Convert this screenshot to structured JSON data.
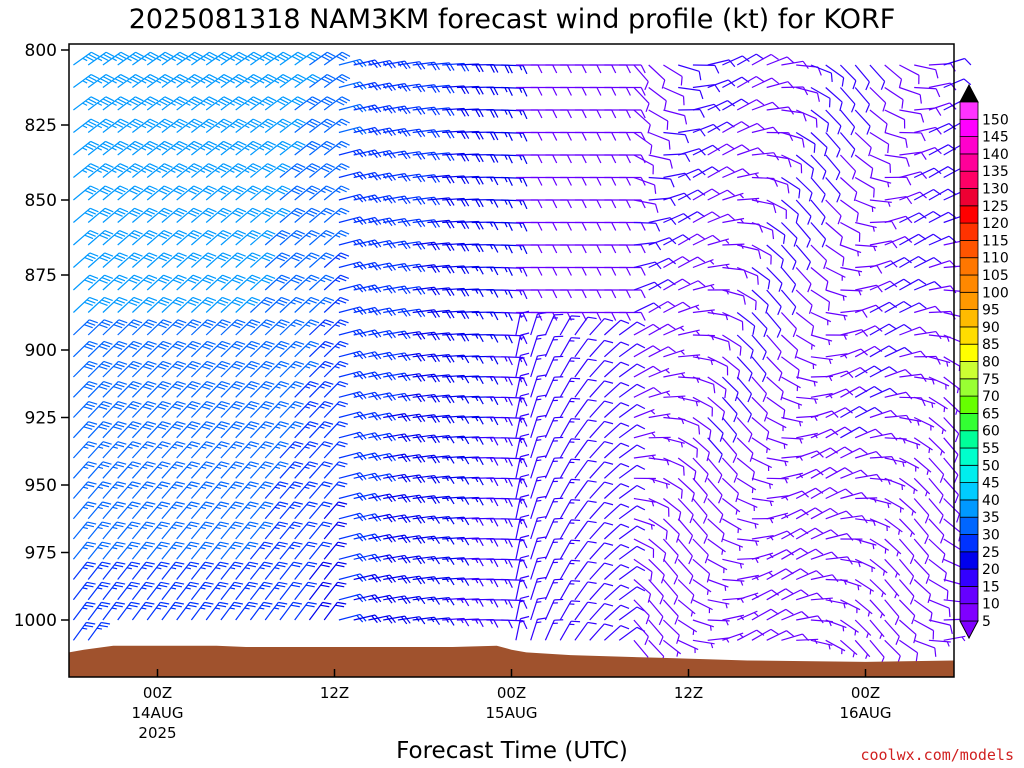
{
  "chart_data": {
    "type": "wind-barb-time-height",
    "title": "2025081318 NAM3KM forecast wind profile (kt) for KORF",
    "xlabel": "Forecast Time (UTC)",
    "ylabel": "",
    "y_axis": {
      "ticks": [
        800,
        825,
        850,
        875,
        900,
        925,
        950,
        975,
        1000
      ],
      "range": [
        800,
        1020
      ]
    },
    "x_axis": {
      "ticks": [
        {
          "label": "00Z",
          "sub": "14AUG",
          "sub2": "2025",
          "hour": 6
        },
        {
          "label": "12Z",
          "sub": "",
          "sub2": "",
          "hour": 18
        },
        {
          "label": "00Z",
          "sub": "15AUG",
          "sub2": "",
          "hour": 30
        },
        {
          "label": "12Z",
          "sub": "",
          "sub2": "",
          "hour": 42
        },
        {
          "label": "00Z",
          "sub": "16AUG",
          "sub2": "",
          "hour": 54
        }
      ],
      "range_hours": [
        0,
        60
      ]
    },
    "colorbar": {
      "values": [
        5,
        10,
        15,
        20,
        25,
        30,
        35,
        40,
        45,
        50,
        55,
        60,
        65,
        70,
        75,
        80,
        85,
        90,
        95,
        100,
        105,
        110,
        115,
        120,
        125,
        130,
        135,
        140,
        145,
        150
      ],
      "colors": [
        "#8000ff",
        "#6600ff",
        "#3300ff",
        "#0000ee",
        "#0033ff",
        "#0066ff",
        "#0099ff",
        "#00ccff",
        "#00eeee",
        "#00ffcc",
        "#00ff99",
        "#33ff33",
        "#66ff00",
        "#99ff33",
        "#ccff33",
        "#ffff00",
        "#ffdd00",
        "#ffbb00",
        "#ff9900",
        "#ff8800",
        "#ff7700",
        "#ff5500",
        "#ff3300",
        "#ff0000",
        "#ee0033",
        "#ff0066",
        "#ff0099",
        "#ff00cc",
        "#ff00ff",
        "#ff33ff"
      ],
      "unit": "kt"
    },
    "surface_pressure": [
      {
        "hour": 0,
        "p": 1012
      },
      {
        "hour": 1,
        "p": 1011
      },
      {
        "hour": 3,
        "p": 1009.5
      },
      {
        "hour": 10,
        "p": 1009.5
      },
      {
        "hour": 12,
        "p": 1010
      },
      {
        "hour": 26,
        "p": 1010
      },
      {
        "hour": 29,
        "p": 1009.5
      },
      {
        "hour": 30,
        "p": 1011
      },
      {
        "hour": 31,
        "p": 1012
      },
      {
        "hour": 34,
        "p": 1013
      },
      {
        "hour": 40,
        "p": 1014
      },
      {
        "hour": 46,
        "p": 1015
      },
      {
        "hour": 54,
        "p": 1015.5
      },
      {
        "hour": 60,
        "p": 1015
      }
    ],
    "wind_summary": [
      {
        "period": "hours 0-18",
        "speed_kt": 35,
        "direction": "SW"
      },
      {
        "period": "hours 18-30",
        "speed_kt": 25,
        "direction": "W"
      },
      {
        "period": "hours 30-38 low levels",
        "speed_kt": 15,
        "direction": "S-SW"
      },
      {
        "period": "hours 38-60",
        "speed_kt": 10,
        "direction": "variable W-NW"
      }
    ],
    "colorbar_label": "kt",
    "legend_position": "right"
  },
  "credit": "coolwx.com/models"
}
